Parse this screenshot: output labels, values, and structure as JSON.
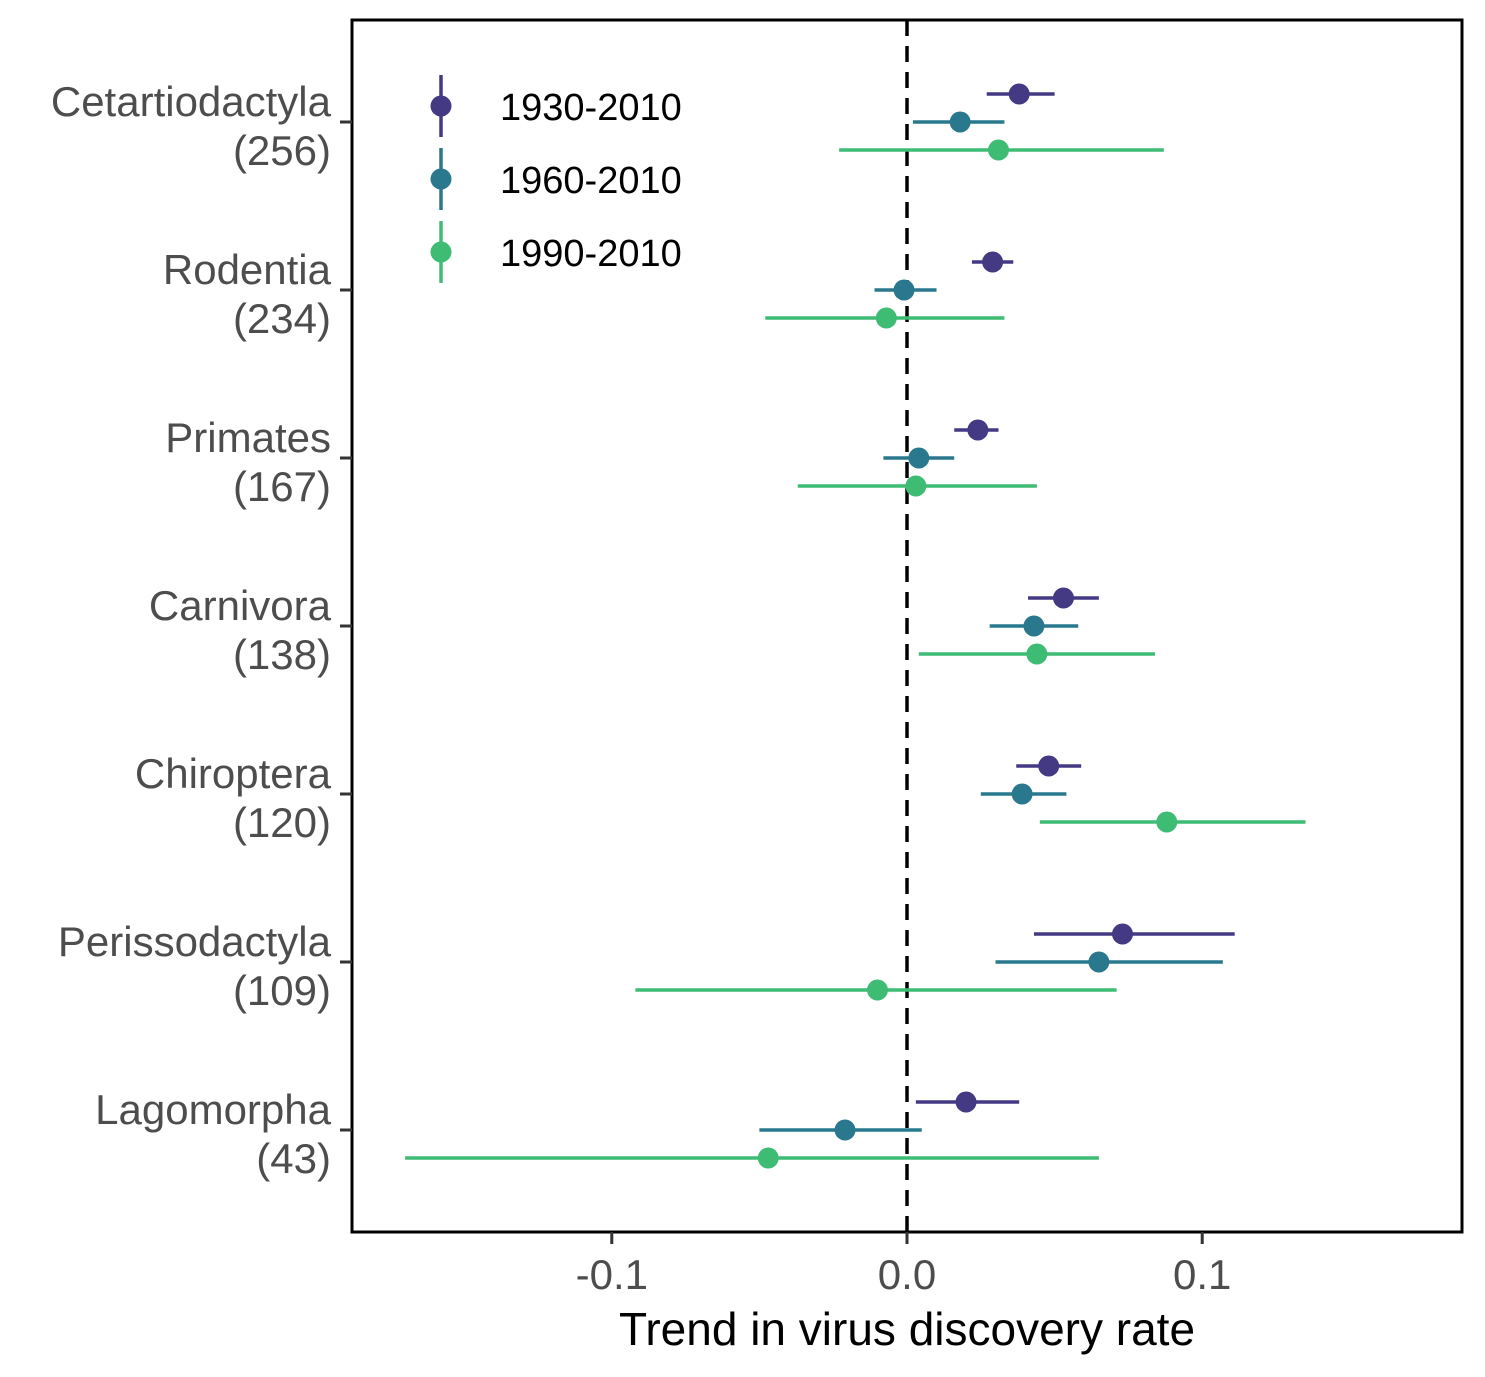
{
  "chart_data": {
    "type": "scatter",
    "subtype": "point-range (forest plot)",
    "title": "",
    "xlabel": "Trend in virus discovery rate",
    "ylabel": "",
    "xlim": [
      -0.188,
      0.188
    ],
    "x_ticks": [
      {
        "value": -0.1,
        "label": "-0.1"
      },
      {
        "value": 0.0,
        "label": "0.0"
      },
      {
        "value": 0.1,
        "label": "0.1"
      }
    ],
    "reference_line": {
      "x": 0,
      "style": "dashed",
      "color": "#000000"
    },
    "grid": false,
    "legend_position": "top-left",
    "categories": [
      {
        "name": "Cetartiodactyla",
        "count": "(256)"
      },
      {
        "name": "Rodentia",
        "count": "(234)"
      },
      {
        "name": "Primates",
        "count": "(167)"
      },
      {
        "name": "Carnivora",
        "count": "(138)"
      },
      {
        "name": "Chiroptera",
        "count": "(120)"
      },
      {
        "name": "Perissodactyla",
        "count": "(109)"
      },
      {
        "name": "Lagomorpha",
        "count": "(43)"
      }
    ],
    "series": [
      {
        "name": "1930-2010",
        "color": "#443983",
        "points": [
          {
            "est": 0.038,
            "lo": 0.027,
            "hi": 0.05
          },
          {
            "est": 0.029,
            "lo": 0.022,
            "hi": 0.036
          },
          {
            "est": 0.024,
            "lo": 0.016,
            "hi": 0.031
          },
          {
            "est": 0.053,
            "lo": 0.041,
            "hi": 0.065
          },
          {
            "est": 0.048,
            "lo": 0.037,
            "hi": 0.059
          },
          {
            "est": 0.073,
            "lo": 0.043,
            "hi": 0.111
          },
          {
            "est": 0.02,
            "lo": 0.003,
            "hi": 0.038
          }
        ]
      },
      {
        "name": "1960-2010",
        "color": "#2a788e",
        "points": [
          {
            "est": 0.018,
            "lo": 0.002,
            "hi": 0.033
          },
          {
            "est": -0.001,
            "lo": -0.011,
            "hi": 0.01
          },
          {
            "est": 0.004,
            "lo": -0.008,
            "hi": 0.016
          },
          {
            "est": 0.043,
            "lo": 0.028,
            "hi": 0.058
          },
          {
            "est": 0.039,
            "lo": 0.025,
            "hi": 0.054
          },
          {
            "est": 0.065,
            "lo": 0.03,
            "hi": 0.107
          },
          {
            "est": -0.021,
            "lo": -0.05,
            "hi": 0.005
          }
        ]
      },
      {
        "name": "1990-2010",
        "color": "#3fbc73",
        "points": [
          {
            "est": 0.031,
            "lo": -0.023,
            "hi": 0.087
          },
          {
            "est": -0.007,
            "lo": -0.048,
            "hi": 0.033
          },
          {
            "est": 0.003,
            "lo": -0.037,
            "hi": 0.044
          },
          {
            "est": 0.044,
            "lo": 0.004,
            "hi": 0.084
          },
          {
            "est": 0.088,
            "lo": 0.045,
            "hi": 0.135
          },
          {
            "est": -0.01,
            "lo": -0.092,
            "hi": 0.071
          },
          {
            "est": -0.047,
            "lo": -0.17,
            "hi": 0.065
          }
        ]
      }
    ]
  }
}
